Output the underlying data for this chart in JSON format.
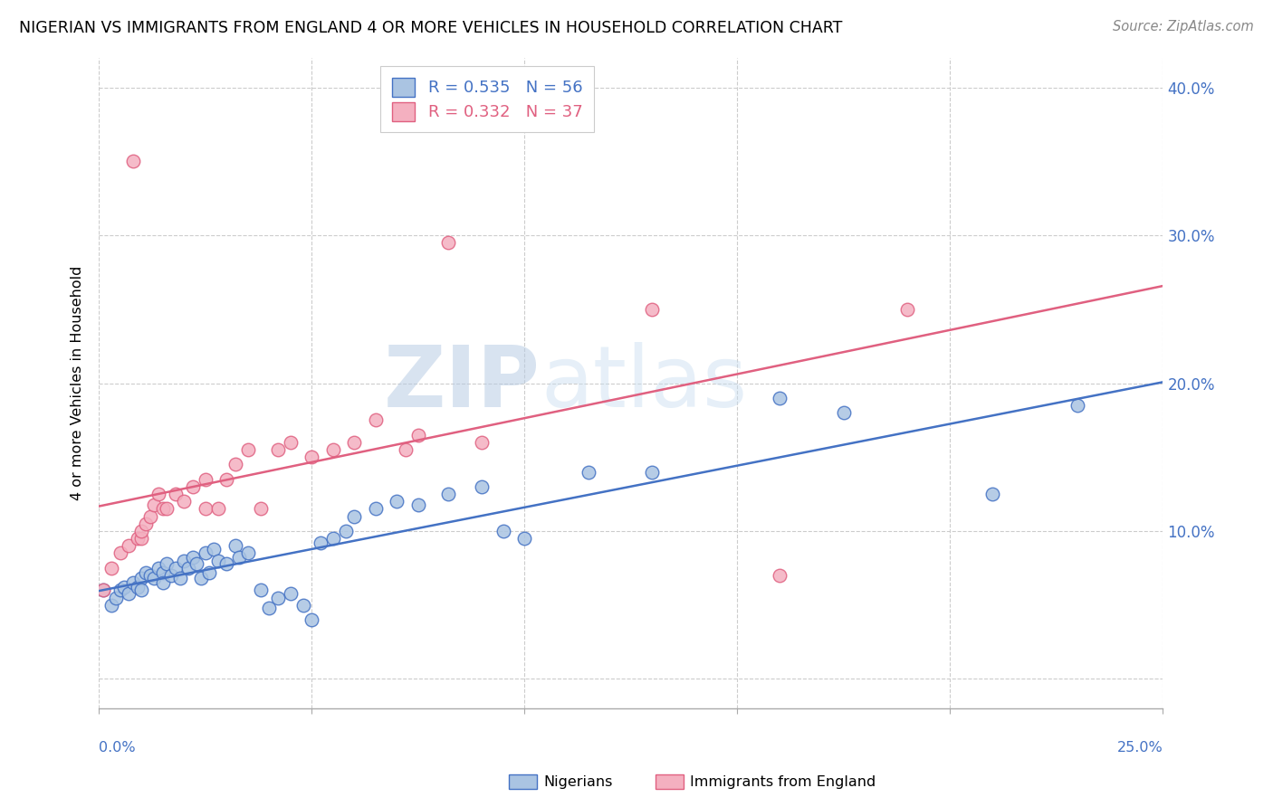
{
  "title": "NIGERIAN VS IMMIGRANTS FROM ENGLAND 4 OR MORE VEHICLES IN HOUSEHOLD CORRELATION CHART",
  "source": "Source: ZipAtlas.com",
  "ylabel": "4 or more Vehicles in Household",
  "xmin": 0.0,
  "xmax": 0.25,
  "ymin": -0.02,
  "ymax": 0.42,
  "yticks": [
    0.0,
    0.1,
    0.2,
    0.3,
    0.4
  ],
  "ytick_labels": [
    "",
    "10.0%",
    "20.0%",
    "30.0%",
    "40.0%"
  ],
  "blue_R": 0.535,
  "blue_N": 56,
  "pink_R": 0.332,
  "pink_N": 37,
  "blue_color": "#aac4e2",
  "pink_color": "#f4b0c0",
  "blue_line_color": "#4472c4",
  "pink_line_color": "#e06080",
  "legend_label_blue": "Nigerians",
  "legend_label_pink": "Immigrants from England",
  "background_color": "#ffffff",
  "grid_color": "#cccccc",
  "blue_x": [
    0.001,
    0.003,
    0.004,
    0.005,
    0.006,
    0.007,
    0.008,
    0.009,
    0.01,
    0.01,
    0.011,
    0.012,
    0.013,
    0.014,
    0.015,
    0.015,
    0.016,
    0.017,
    0.018,
    0.019,
    0.02,
    0.021,
    0.022,
    0.023,
    0.024,
    0.025,
    0.026,
    0.027,
    0.028,
    0.03,
    0.032,
    0.033,
    0.035,
    0.038,
    0.04,
    0.042,
    0.045,
    0.048,
    0.05,
    0.052,
    0.055,
    0.058,
    0.06,
    0.065,
    0.07,
    0.075,
    0.082,
    0.09,
    0.095,
    0.1,
    0.115,
    0.13,
    0.16,
    0.175,
    0.21,
    0.23
  ],
  "blue_y": [
    0.06,
    0.05,
    0.055,
    0.06,
    0.062,
    0.058,
    0.065,
    0.062,
    0.068,
    0.06,
    0.072,
    0.07,
    0.068,
    0.075,
    0.072,
    0.065,
    0.078,
    0.07,
    0.075,
    0.068,
    0.08,
    0.075,
    0.082,
    0.078,
    0.068,
    0.085,
    0.072,
    0.088,
    0.08,
    0.078,
    0.09,
    0.082,
    0.085,
    0.06,
    0.048,
    0.055,
    0.058,
    0.05,
    0.04,
    0.092,
    0.095,
    0.1,
    0.11,
    0.115,
    0.12,
    0.118,
    0.125,
    0.13,
    0.1,
    0.095,
    0.14,
    0.14,
    0.19,
    0.18,
    0.125,
    0.185
  ],
  "pink_x": [
    0.001,
    0.003,
    0.005,
    0.007,
    0.008,
    0.009,
    0.01,
    0.01,
    0.011,
    0.012,
    0.013,
    0.014,
    0.015,
    0.016,
    0.018,
    0.02,
    0.022,
    0.025,
    0.025,
    0.028,
    0.03,
    0.032,
    0.035,
    0.038,
    0.042,
    0.045,
    0.05,
    0.055,
    0.06,
    0.065,
    0.072,
    0.075,
    0.082,
    0.09,
    0.13,
    0.16,
    0.19
  ],
  "pink_y": [
    0.06,
    0.075,
    0.085,
    0.09,
    0.35,
    0.095,
    0.095,
    0.1,
    0.105,
    0.11,
    0.118,
    0.125,
    0.115,
    0.115,
    0.125,
    0.12,
    0.13,
    0.135,
    0.115,
    0.115,
    0.135,
    0.145,
    0.155,
    0.115,
    0.155,
    0.16,
    0.15,
    0.155,
    0.16,
    0.175,
    0.155,
    0.165,
    0.295,
    0.16,
    0.25,
    0.07,
    0.25
  ]
}
